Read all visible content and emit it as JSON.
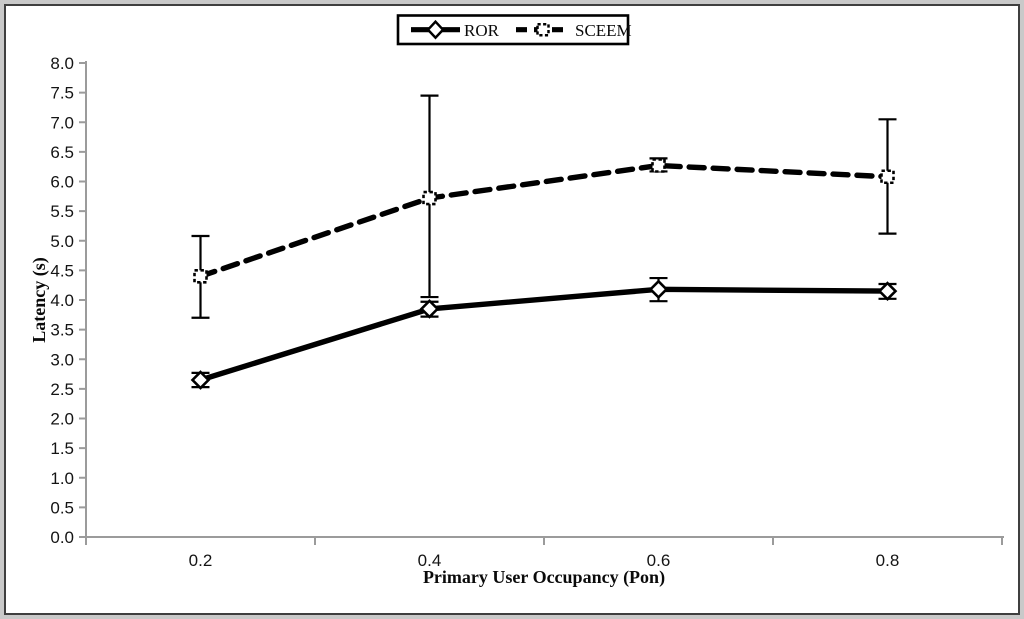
{
  "figure": {
    "background": "#ffffff",
    "frame_outer_color": "#c9c9c9",
    "frame_inner_color": "#3f3f3f"
  },
  "chart_data": {
    "type": "line",
    "title": "",
    "xlabel": "Primary User Occupancy (Pon)",
    "ylabel": "Latency (s)",
    "categories": [
      0.2,
      0.4,
      0.6,
      0.8
    ],
    "x_tick_labels": [
      "0.2",
      "0.4",
      "0.6",
      "0.8"
    ],
    "y_axis": {
      "min": 0.0,
      "max": 8.0,
      "step": 0.5,
      "decimals": 1
    },
    "ylim": [
      0.0,
      8.0
    ],
    "grid": false,
    "legend_position": "top-center",
    "axis_color": "#9b9b9b",
    "series_color": "#000000",
    "marker_fill": "#ffffff",
    "series": [
      {
        "name": "ROR",
        "line_style": "solid",
        "marker": "open-diamond",
        "values": [
          2.65,
          3.85,
          4.18,
          4.15
        ],
        "error_plus": [
          0.12,
          0.12,
          0.19,
          0.12
        ],
        "error_minus": [
          0.12,
          0.13,
          0.2,
          0.13
        ]
      },
      {
        "name": "SCEEM",
        "line_style": "dashed",
        "marker": "open-square-dashed",
        "values": [
          4.4,
          5.72,
          6.27,
          6.08
        ],
        "error_plus": [
          0.68,
          1.73,
          0.12,
          0.97
        ],
        "error_minus": [
          0.7,
          1.67,
          0.1,
          0.96
        ]
      }
    ]
  }
}
